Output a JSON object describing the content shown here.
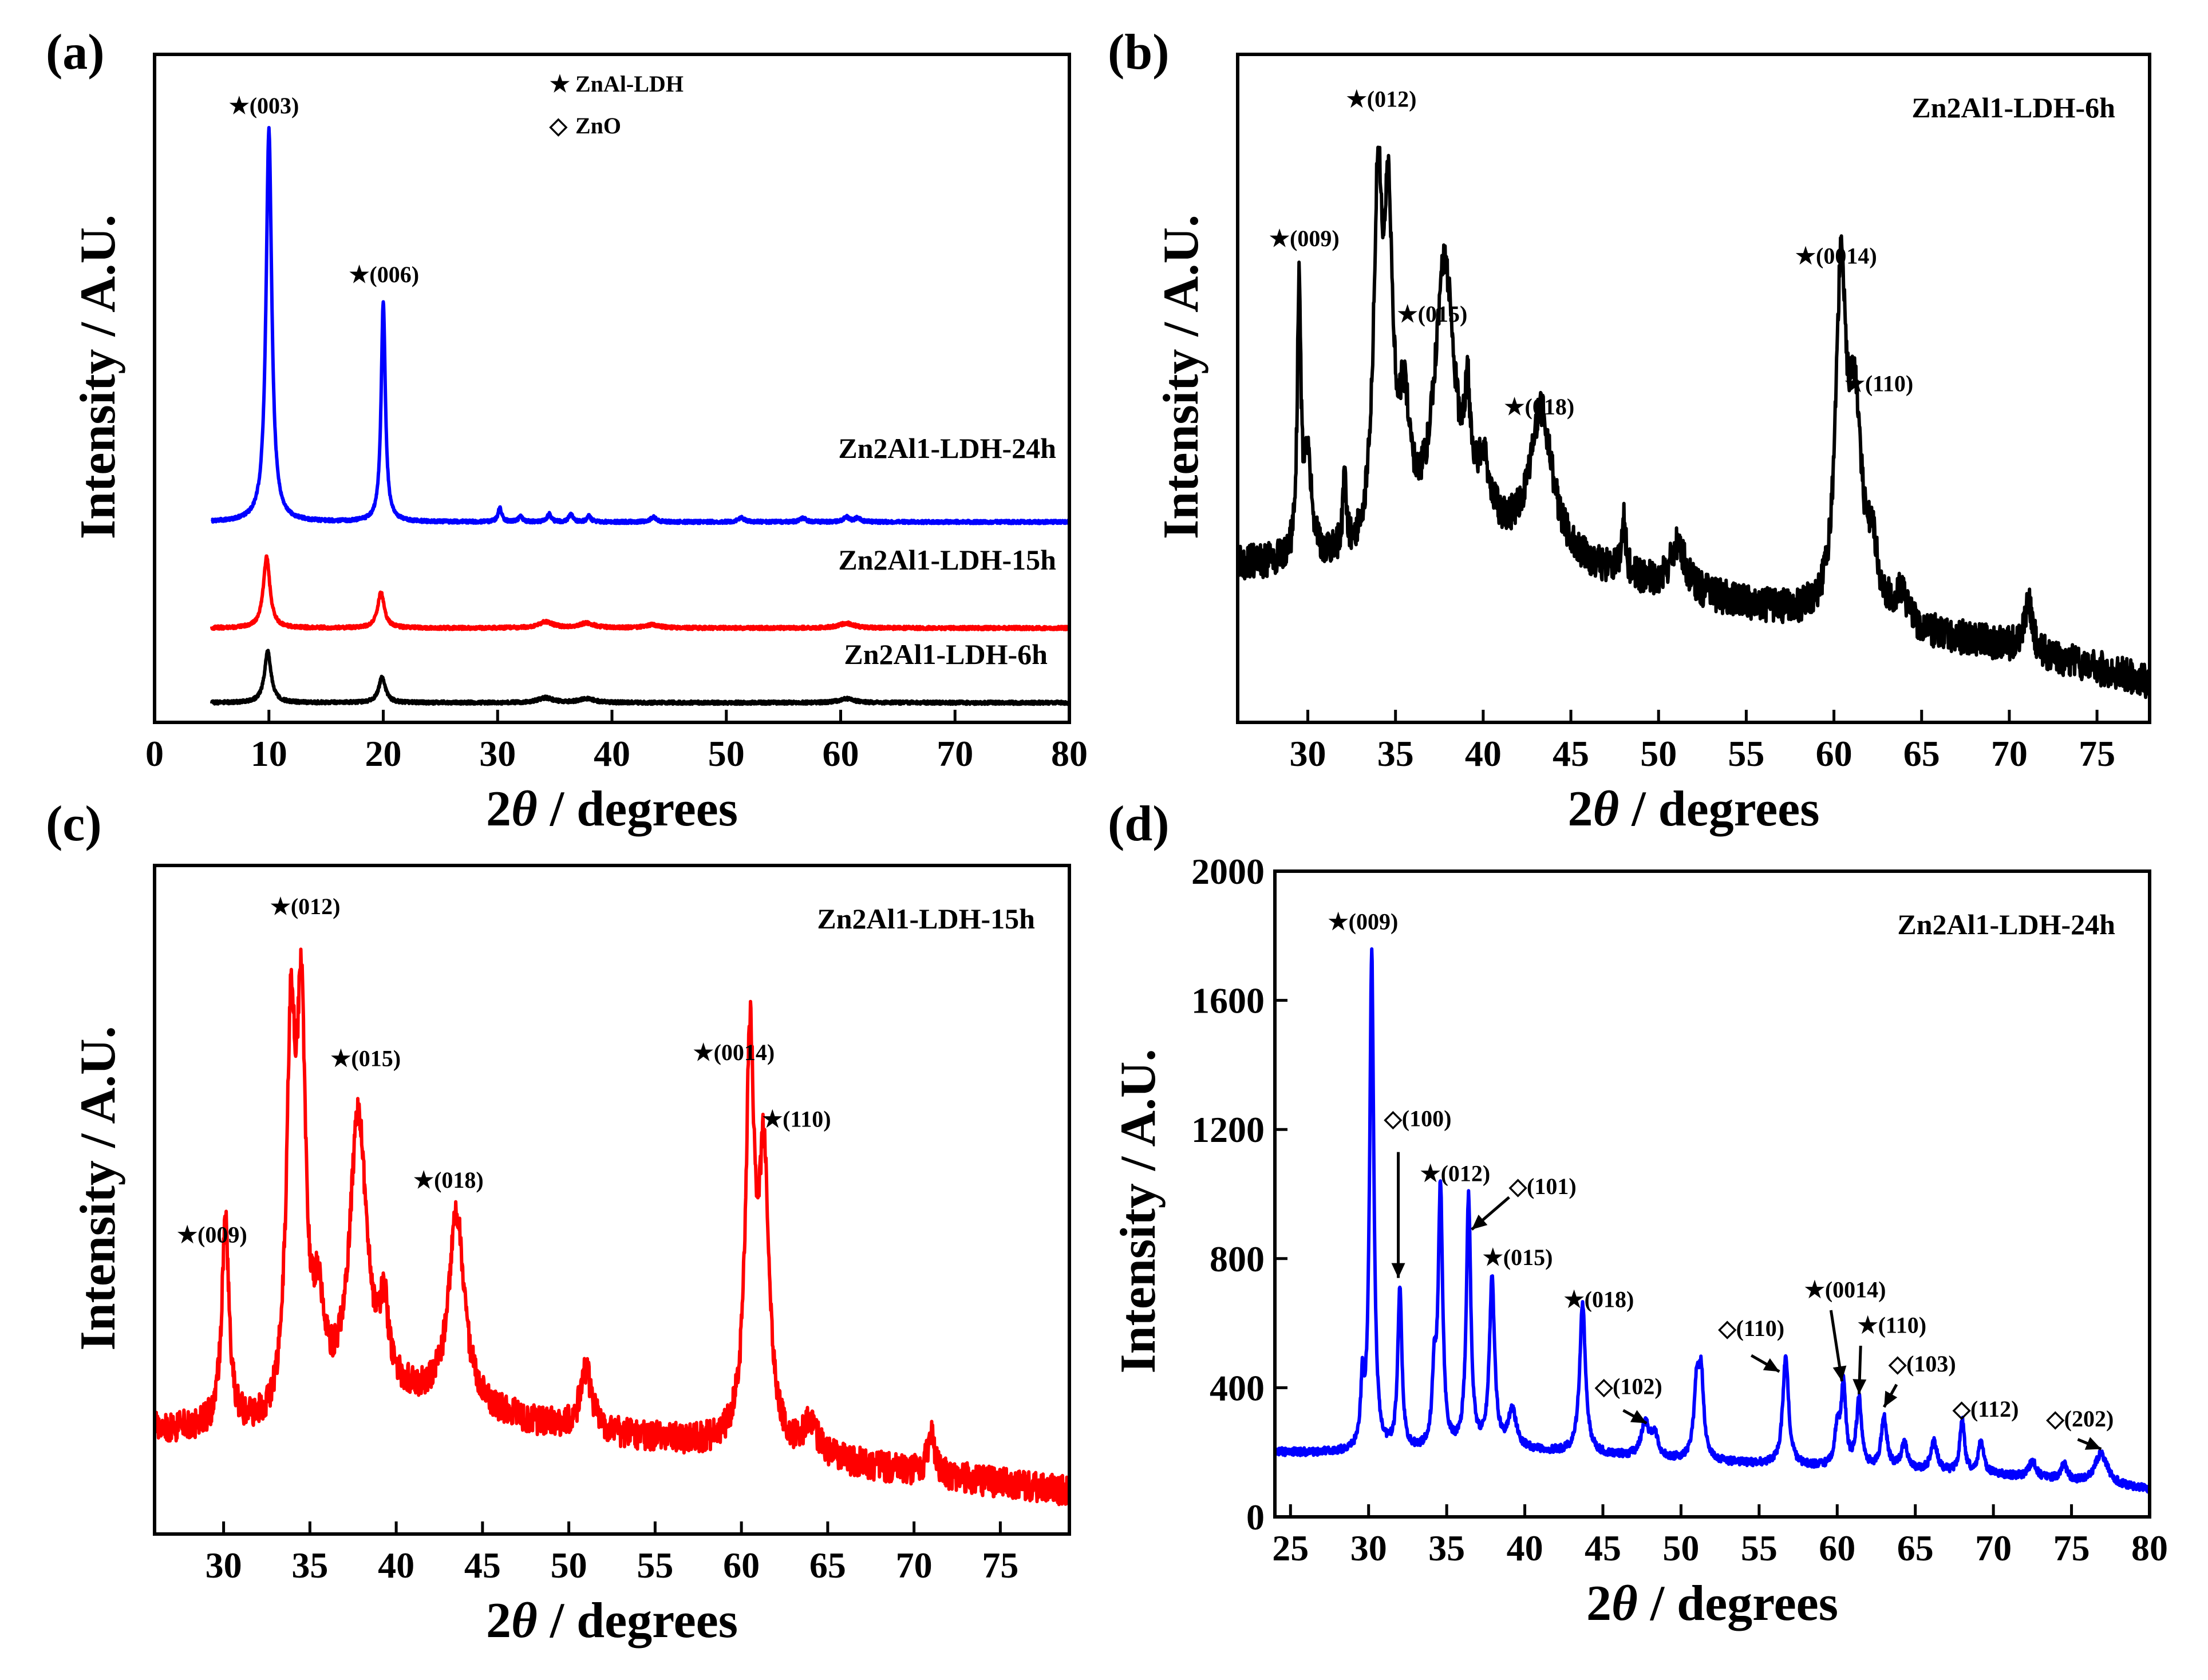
{
  "colors": {
    "blue": "#0000ff",
    "red": "#ff0000",
    "black": "#000000"
  },
  "chart_data": [
    {
      "id": "a",
      "panel_label": "(a)",
      "type": "line",
      "xlabel_prefix": "2",
      "xlabel_theta": "θ",
      "xlabel_suffix": " / degrees",
      "ylabel": "Intensity / A.U.",
      "xlim": [
        0,
        80
      ],
      "xticks": [
        0,
        10,
        20,
        30,
        40,
        50,
        60,
        70,
        80
      ],
      "legend": [
        {
          "symbol": "★",
          "text": "ZnAl-LDH"
        },
        {
          "symbol": "◇",
          "text": "ZnO"
        }
      ],
      "series": [
        {
          "name": "Zn2Al1-LDH-24h",
          "color": "#0000ff",
          "offset": 0.51,
          "noise": 0.004,
          "xstart": 5,
          "xend": 80,
          "baseline": [
            [
              5,
              0
            ],
            [
              80,
              0
            ]
          ],
          "peaks": [
            [
              10,
              1.0,
              0.3
            ],
            [
              20,
              0.56,
              0.22
            ],
            [
              30.2,
              0.035,
              0.2
            ],
            [
              32,
              0.015,
              0.2
            ],
            [
              34.5,
              0.02,
              0.2
            ],
            [
              36.4,
              0.02,
              0.2
            ],
            [
              38,
              0.015,
              0.2
            ],
            [
              43.6,
              0.012,
              0.3
            ],
            [
              51.3,
              0.012,
              0.3
            ],
            [
              56.7,
              0.01,
              0.3
            ],
            [
              60.5,
              0.012,
              0.3
            ],
            [
              61.5,
              0.01,
              0.3
            ]
          ]
        },
        {
          "name": "Zn2Al1-LDH-15h",
          "color": "#ff0000",
          "offset": 0.24,
          "noise": 0.004,
          "xstart": 5,
          "xend": 80,
          "baseline": [
            [
              5,
              0
            ],
            [
              80,
              0
            ]
          ],
          "peaks": [
            [
              9.8,
              0.18,
              0.35
            ],
            [
              19.8,
              0.09,
              0.35
            ],
            [
              34.2,
              0.015,
              0.8
            ],
            [
              37.8,
              0.012,
              0.8
            ],
            [
              43.5,
              0.008,
              0.8
            ],
            [
              60.5,
              0.012,
              0.8
            ]
          ]
        },
        {
          "name": "Zn2Al1-LDH-6h",
          "color": "#000000",
          "offset": 0.05,
          "noise": 0.004,
          "xstart": 5,
          "xend": 80,
          "baseline": [
            [
              5,
              0
            ],
            [
              80,
              0
            ]
          ],
          "peaks": [
            [
              9.9,
              0.13,
              0.35
            ],
            [
              19.9,
              0.065,
              0.35
            ],
            [
              34.2,
              0.012,
              0.8
            ],
            [
              37.8,
              0.01,
              0.8
            ],
            [
              60.5,
              0.01,
              0.8
            ]
          ]
        }
      ],
      "annotations": [
        {
          "text": "★(003)",
          "x": 6.5,
          "y": 1.55
        },
        {
          "text": "★(006)",
          "x": 17.0,
          "y": 1.12
        }
      ]
    },
    {
      "id": "b",
      "panel_label": "(b)",
      "type": "line",
      "xlabel_prefix": "2",
      "xlabel_theta": "θ",
      "xlabel_suffix": " / degrees",
      "ylabel": "Intensity / A.U.",
      "xlim": [
        26,
        78
      ],
      "xticks": [
        30,
        35,
        40,
        45,
        50,
        55,
        60,
        65,
        70,
        75
      ],
      "sample_label": "Zn2Al1-LDH-6h",
      "series": [
        {
          "name": "Zn2Al1-LDH-6h",
          "color": "#000000",
          "noise": 0.03,
          "xstart": 26,
          "xend": 78,
          "baseline": [
            [
              26,
              0.27
            ],
            [
              33,
              0.27
            ],
            [
              40,
              0.3
            ],
            [
              50,
              0.23
            ],
            [
              60,
              0.17
            ],
            [
              70,
              0.13
            ],
            [
              78,
              0.07
            ]
          ],
          "peaks": [
            [
              29.5,
              0.47,
              0.12
            ],
            [
              30.0,
              0.18,
              0.25
            ],
            [
              32.1,
              0.12,
              0.12
            ],
            [
              34.0,
              0.58,
              0.3
            ],
            [
              34.6,
              0.5,
              0.3
            ],
            [
              35.5,
              0.2,
              0.4
            ],
            [
              37.8,
              0.48,
              0.7
            ],
            [
              39.1,
              0.17,
              0.18
            ],
            [
              40.0,
              0.1,
              0.5
            ],
            [
              43.3,
              0.25,
              0.8
            ],
            [
              48.0,
              0.1,
              0.15
            ],
            [
              51.1,
              0.08,
              0.5
            ],
            [
              60.4,
              0.56,
              0.35
            ],
            [
              61.2,
              0.34,
              0.45
            ],
            [
              62.2,
              0.1,
              0.4
            ],
            [
              63.8,
              0.05,
              0.5
            ],
            [
              71.1,
              0.09,
              0.25
            ]
          ]
        }
      ],
      "annotations": [
        {
          "text": "★(009)",
          "x": 27.8,
          "y": 0.82
        },
        {
          "text": "★(012)",
          "x": 32.2,
          "y": 1.06
        },
        {
          "text": "★(015)",
          "x": 35.1,
          "y": 0.69
        },
        {
          "text": "★(018)",
          "x": 41.2,
          "y": 0.53
        },
        {
          "text": "★(0014)",
          "x": 57.8,
          "y": 0.79
        },
        {
          "text": "★(110)",
          "x": 60.6,
          "y": 0.57
        }
      ]
    },
    {
      "id": "c",
      "panel_label": "(c)",
      "type": "line",
      "xlabel_prefix": "2",
      "xlabel_theta": "θ",
      "xlabel_suffix": " / degrees",
      "ylabel": "Intensity / A.U.",
      "xlim": [
        26,
        79
      ],
      "xticks": [
        30,
        35,
        40,
        45,
        50,
        55,
        60,
        65,
        70,
        75
      ],
      "sample_label": "Zn2Al1-LDH-15h",
      "series": [
        {
          "name": "Zn2Al1-LDH-15h",
          "color": "#ff0000",
          "noise": 0.025,
          "xstart": 26,
          "xend": 79,
          "baseline": [
            [
              26,
              0.17
            ],
            [
              33,
              0.17
            ],
            [
              40,
              0.22
            ],
            [
              50,
              0.17
            ],
            [
              60,
              0.14
            ],
            [
              70,
              0.1
            ],
            [
              79,
              0.07
            ]
          ],
          "peaks": [
            [
              30.1,
              0.34,
              0.25
            ],
            [
              33.9,
              0.6,
              0.3
            ],
            [
              34.5,
              0.6,
              0.3
            ],
            [
              35.5,
              0.15,
              0.4
            ],
            [
              37.8,
              0.47,
              0.6
            ],
            [
              39.3,
              0.12,
              0.3
            ],
            [
              43.5,
              0.32,
              0.55
            ],
            [
              51.0,
              0.1,
              0.4
            ],
            [
              60.5,
              0.64,
              0.3
            ],
            [
              61.3,
              0.45,
              0.35
            ],
            [
              64.0,
              0.05,
              0.5
            ],
            [
              71.0,
              0.07,
              0.25
            ]
          ]
        }
      ],
      "annotations": [
        {
          "text": "★(009)",
          "x": 27.3,
          "y": 0.48
        },
        {
          "text": "★(012)",
          "x": 32.7,
          "y": 1.02
        },
        {
          "text": "★(015)",
          "x": 36.2,
          "y": 0.77
        },
        {
          "text": "★(018)",
          "x": 41.0,
          "y": 0.57
        },
        {
          "text": "★(0014)",
          "x": 57.2,
          "y": 0.78
        },
        {
          "text": "★(110)",
          "x": 61.2,
          "y": 0.67
        }
      ]
    },
    {
      "id": "d",
      "panel_label": "(d)",
      "type": "line",
      "xlabel_prefix": "2",
      "xlabel_theta": "θ",
      "xlabel_suffix": " / degrees",
      "ylabel": "Intensity / A.U.",
      "xlim": [
        24,
        80
      ],
      "ylim": [
        0,
        2000
      ],
      "xticks": [
        25,
        30,
        35,
        40,
        45,
        50,
        55,
        60,
        65,
        70,
        75,
        80
      ],
      "yticks": [
        0,
        400,
        800,
        1200,
        1600,
        2000
      ],
      "sample_label": "Zn2Al1-LDH-24h",
      "series": [
        {
          "name": "Zn2Al1-LDH-24h",
          "color": "#0000ff",
          "noise": 12,
          "xstart": 24,
          "xend": 80,
          "baseline": [
            [
              24,
              200
            ],
            [
              30,
              195
            ],
            [
              40,
              205
            ],
            [
              50,
              175
            ],
            [
              60,
              150
            ],
            [
              70,
              130
            ],
            [
              80,
              85
            ]
          ],
          "peaks": [
            [
              29.6,
              180,
              0.12
            ],
            [
              30.2,
              1540,
              0.16
            ],
            [
              32.0,
              500,
              0.16
            ],
            [
              34.2,
              210,
              0.15
            ],
            [
              34.6,
              810,
              0.17
            ],
            [
              36.4,
              780,
              0.17
            ],
            [
              37.9,
              520,
              0.2
            ],
            [
              39.2,
              120,
              0.3
            ],
            [
              43.7,
              465,
              0.22
            ],
            [
              47.7,
              105,
              0.3
            ],
            [
              48.3,
              70,
              0.25
            ],
            [
              51.0,
              230,
              0.2
            ],
            [
              51.3,
              240,
              0.18
            ],
            [
              56.7,
              335,
              0.22
            ],
            [
              60.0,
              110,
              0.2
            ],
            [
              60.4,
              250,
              0.18
            ],
            [
              61.4,
              210,
              0.2
            ],
            [
              63.0,
              160,
              0.22
            ],
            [
              64.3,
              80,
              0.25
            ],
            [
              66.2,
              90,
              0.25
            ],
            [
              68.0,
              160,
              0.18
            ],
            [
              69.2,
              100,
              0.2
            ],
            [
              72.5,
              50,
              0.3
            ],
            [
              74.5,
              50,
              0.25
            ],
            [
              76.9,
              95,
              0.5
            ]
          ]
        }
      ],
      "annotations": [
        {
          "text": "★(009)",
          "x": 27.4,
          "y": 1820
        },
        {
          "text": "★(012)",
          "x": 33.3,
          "y": 1040
        },
        {
          "text": "★(015)",
          "x": 37.3,
          "y": 780
        },
        {
          "text": "★(018)",
          "x": 42.5,
          "y": 650
        },
        {
          "text": "★(0014)",
          "x": 57.9,
          "y": 680
        },
        {
          "text": "★(110)",
          "x": 61.3,
          "y": 570
        },
        {
          "text": "◇(100)",
          "x": 31.0,
          "y": 1210
        },
        {
          "text": "◇(101)",
          "x": 39.0,
          "y": 1000
        },
        {
          "text": "◇(102)",
          "x": 44.5,
          "y": 380
        },
        {
          "text": "◇(110)",
          "x": 52.4,
          "y": 560
        },
        {
          "text": "◇(103)",
          "x": 63.3,
          "y": 450
        },
        {
          "text": "◇(112)",
          "x": 67.4,
          "y": 310
        },
        {
          "text": "◇(202)",
          "x": 73.4,
          "y": 280
        }
      ]
    }
  ]
}
